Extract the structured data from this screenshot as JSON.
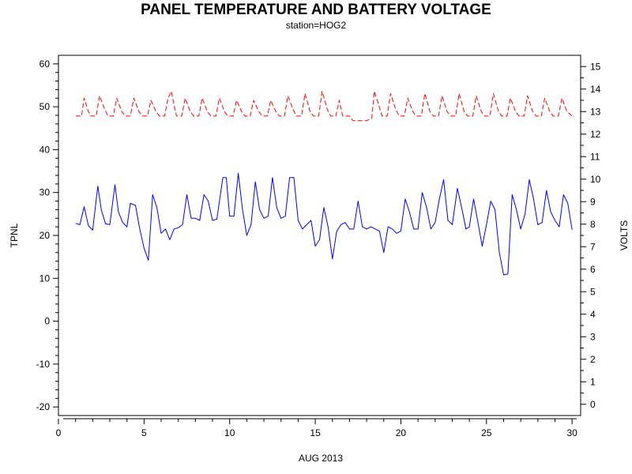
{
  "chart_data": {
    "type": "line",
    "title": "PANEL TEMPERATURE AND BATTERY VOLTAGE",
    "subtitle": "station=HOG2",
    "xlabel": "AUG 2013",
    "ylabel_left": "TPNL",
    "ylabel_right": "VOLTS",
    "xlim": [
      0,
      30.5
    ],
    "ylim_left": [
      -22,
      62
    ],
    "ylim_right": [
      -0.5,
      15.5
    ],
    "x_ticks": [
      0,
      5,
      10,
      15,
      20,
      25,
      30
    ],
    "y_ticks_left": [
      -20,
      -10,
      0,
      10,
      20,
      30,
      40,
      50,
      60
    ],
    "y_ticks_right": [
      0,
      1,
      2,
      3,
      4,
      5,
      6,
      7,
      8,
      9,
      10,
      11,
      12,
      13,
      14,
      15
    ],
    "grid": false,
    "series": [
      {
        "axis": "left",
        "color": "#0000ff",
        "style": "solid",
        "points": [
          [
            1.0,
            22.8
          ],
          [
            1.25,
            22.5
          ],
          [
            1.5,
            26.7
          ],
          [
            1.75,
            22.3
          ],
          [
            2.0,
            21.2
          ],
          [
            2.3,
            31.5
          ],
          [
            2.5,
            26.0
          ],
          [
            2.75,
            22.7
          ],
          [
            3.0,
            22.5
          ],
          [
            3.3,
            31.8
          ],
          [
            3.5,
            25.5
          ],
          [
            3.75,
            23.0
          ],
          [
            4.0,
            22.0
          ],
          [
            4.2,
            27.5
          ],
          [
            4.5,
            27.0
          ],
          [
            4.75,
            21.5
          ],
          [
            5.0,
            17.0
          ],
          [
            5.25,
            14.2
          ],
          [
            5.5,
            29.5
          ],
          [
            5.75,
            26.5
          ],
          [
            6.0,
            20.5
          ],
          [
            6.25,
            21.5
          ],
          [
            6.5,
            19.0
          ],
          [
            6.75,
            21.5
          ],
          [
            7.0,
            21.8
          ],
          [
            7.25,
            22.5
          ],
          [
            7.5,
            29.5
          ],
          [
            7.75,
            24.0
          ],
          [
            8.0,
            24.0
          ],
          [
            8.25,
            23.5
          ],
          [
            8.5,
            29.5
          ],
          [
            8.75,
            28.0
          ],
          [
            9.0,
            23.5
          ],
          [
            9.25,
            23.8
          ],
          [
            9.6,
            33.5
          ],
          [
            9.8,
            33.5
          ],
          [
            10.0,
            24.5
          ],
          [
            10.25,
            24.5
          ],
          [
            10.5,
            34.5
          ],
          [
            10.75,
            26.0
          ],
          [
            11.0,
            20.0
          ],
          [
            11.25,
            22.5
          ],
          [
            11.5,
            32.5
          ],
          [
            11.75,
            26.0
          ],
          [
            12.0,
            24.0
          ],
          [
            12.25,
            24.5
          ],
          [
            12.5,
            33.5
          ],
          [
            12.75,
            26.5
          ],
          [
            13.0,
            24.0
          ],
          [
            13.25,
            24.5
          ],
          [
            13.5,
            33.5
          ],
          [
            13.75,
            33.5
          ],
          [
            14.0,
            23.5
          ],
          [
            14.25,
            21.5
          ],
          [
            14.5,
            22.5
          ],
          [
            14.75,
            23.5
          ],
          [
            15.0,
            17.5
          ],
          [
            15.25,
            19.0
          ],
          [
            15.5,
            26.5
          ],
          [
            15.75,
            22.0
          ],
          [
            16.0,
            14.5
          ],
          [
            16.25,
            21.0
          ],
          [
            16.5,
            22.5
          ],
          [
            16.75,
            23.0
          ],
          [
            17.0,
            21.5
          ],
          [
            17.25,
            21.5
          ],
          [
            17.5,
            28.0
          ],
          [
            17.75,
            22.0
          ],
          [
            18.0,
            21.5
          ],
          [
            18.25,
            22.0
          ],
          [
            18.5,
            21.5
          ],
          [
            18.75,
            21.0
          ],
          [
            19.0,
            16.0
          ],
          [
            19.25,
            22.0
          ],
          [
            19.5,
            21.5
          ],
          [
            19.75,
            20.5
          ],
          [
            20.0,
            21.0
          ],
          [
            20.25,
            28.5
          ],
          [
            20.5,
            25.5
          ],
          [
            20.75,
            21.5
          ],
          [
            21.0,
            21.5
          ],
          [
            21.25,
            30.0
          ],
          [
            21.5,
            26.5
          ],
          [
            21.75,
            21.5
          ],
          [
            22.0,
            23.0
          ],
          [
            22.25,
            28.5
          ],
          [
            22.5,
            33.0
          ],
          [
            22.75,
            23.5
          ],
          [
            23.0,
            22.5
          ],
          [
            23.3,
            31.0
          ],
          [
            23.6,
            25.5
          ],
          [
            23.8,
            21.5
          ],
          [
            24.0,
            22.0
          ],
          [
            24.25,
            28.5
          ],
          [
            24.5,
            23.0
          ],
          [
            24.75,
            17.5
          ],
          [
            25.0,
            22.5
          ],
          [
            25.25,
            28.0
          ],
          [
            25.5,
            26.0
          ],
          [
            25.75,
            16.0
          ],
          [
            26.0,
            10.8
          ],
          [
            26.25,
            11.0
          ],
          [
            26.5,
            29.5
          ],
          [
            26.75,
            26.0
          ],
          [
            27.0,
            21.5
          ],
          [
            27.25,
            25.0
          ],
          [
            27.5,
            33.0
          ],
          [
            27.75,
            28.5
          ],
          [
            28.0,
            22.5
          ],
          [
            28.25,
            23.0
          ],
          [
            28.5,
            30.5
          ],
          [
            28.75,
            25.5
          ],
          [
            29.0,
            23.5
          ],
          [
            29.25,
            22.0
          ],
          [
            29.5,
            29.5
          ],
          [
            29.75,
            27.5
          ],
          [
            30.0,
            21.3
          ]
        ]
      },
      {
        "axis": "right",
        "color": "#ff0000",
        "style": "dashed",
        "points": [
          [
            1.0,
            12.8
          ],
          [
            1.35,
            12.8
          ],
          [
            1.5,
            13.6
          ],
          [
            1.75,
            13.0
          ],
          [
            1.9,
            12.8
          ],
          [
            2.2,
            12.8
          ],
          [
            2.4,
            13.7
          ],
          [
            2.7,
            13.1
          ],
          [
            2.9,
            12.8
          ],
          [
            3.2,
            12.8
          ],
          [
            3.4,
            13.6
          ],
          [
            3.7,
            13.0
          ],
          [
            3.9,
            12.8
          ],
          [
            4.2,
            12.8
          ],
          [
            4.4,
            13.6
          ],
          [
            4.7,
            13.0
          ],
          [
            4.9,
            12.8
          ],
          [
            5.2,
            12.8
          ],
          [
            5.4,
            13.5
          ],
          [
            5.7,
            13.0
          ],
          [
            5.9,
            12.8
          ],
          [
            6.2,
            12.8
          ],
          [
            6.4,
            13.6
          ],
          [
            6.6,
            13.9
          ],
          [
            6.8,
            13.1
          ],
          [
            6.9,
            12.8
          ],
          [
            7.2,
            12.8
          ],
          [
            7.4,
            13.6
          ],
          [
            7.7,
            13.0
          ],
          [
            7.9,
            12.8
          ],
          [
            8.2,
            12.8
          ],
          [
            8.4,
            13.6
          ],
          [
            8.7,
            13.0
          ],
          [
            8.9,
            12.8
          ],
          [
            9.2,
            12.8
          ],
          [
            9.4,
            13.6
          ],
          [
            9.7,
            13.0
          ],
          [
            9.9,
            12.8
          ],
          [
            10.2,
            12.8
          ],
          [
            10.4,
            13.5
          ],
          [
            10.7,
            13.0
          ],
          [
            10.9,
            12.8
          ],
          [
            11.2,
            12.8
          ],
          [
            11.4,
            13.5
          ],
          [
            11.7,
            13.0
          ],
          [
            11.9,
            12.8
          ],
          [
            12.2,
            12.8
          ],
          [
            12.4,
            13.5
          ],
          [
            12.7,
            13.0
          ],
          [
            12.9,
            12.8
          ],
          [
            13.2,
            12.8
          ],
          [
            13.4,
            13.7
          ],
          [
            13.7,
            13.1
          ],
          [
            13.9,
            12.8
          ],
          [
            14.2,
            12.8
          ],
          [
            14.4,
            13.8
          ],
          [
            14.7,
            13.0
          ],
          [
            14.9,
            12.8
          ],
          [
            15.2,
            12.8
          ],
          [
            15.4,
            13.9
          ],
          [
            15.7,
            13.1
          ],
          [
            15.9,
            12.8
          ],
          [
            16.2,
            12.8
          ],
          [
            16.4,
            13.5
          ],
          [
            16.6,
            12.8
          ],
          [
            17.0,
            12.8
          ],
          [
            17.2,
            12.6
          ],
          [
            17.6,
            12.6
          ],
          [
            18.0,
            12.6
          ],
          [
            18.3,
            12.7
          ],
          [
            18.45,
            13.9
          ],
          [
            18.7,
            13.3
          ],
          [
            18.9,
            12.8
          ],
          [
            19.2,
            12.8
          ],
          [
            19.4,
            13.8
          ],
          [
            19.7,
            13.1
          ],
          [
            19.9,
            12.8
          ],
          [
            20.2,
            12.8
          ],
          [
            20.4,
            13.6
          ],
          [
            20.7,
            13.0
          ],
          [
            20.9,
            12.8
          ],
          [
            21.2,
            12.8
          ],
          [
            21.4,
            13.8
          ],
          [
            21.7,
            13.0
          ],
          [
            21.9,
            12.8
          ],
          [
            22.2,
            12.8
          ],
          [
            22.4,
            13.7
          ],
          [
            22.7,
            13.0
          ],
          [
            22.9,
            12.8
          ],
          [
            23.2,
            12.8
          ],
          [
            23.4,
            13.8
          ],
          [
            23.7,
            13.0
          ],
          [
            23.9,
            12.8
          ],
          [
            24.2,
            12.8
          ],
          [
            24.4,
            13.7
          ],
          [
            24.7,
            13.0
          ],
          [
            24.9,
            12.8
          ],
          [
            25.2,
            12.8
          ],
          [
            25.4,
            13.8
          ],
          [
            25.7,
            13.0
          ],
          [
            25.9,
            12.8
          ],
          [
            26.2,
            12.8
          ],
          [
            26.4,
            13.6
          ],
          [
            26.7,
            13.0
          ],
          [
            26.9,
            12.8
          ],
          [
            27.2,
            12.8
          ],
          [
            27.4,
            13.7
          ],
          [
            27.7,
            13.0
          ],
          [
            27.9,
            12.8
          ],
          [
            28.2,
            12.8
          ],
          [
            28.4,
            13.6
          ],
          [
            28.7,
            13.0
          ],
          [
            28.9,
            12.8
          ],
          [
            29.2,
            12.8
          ],
          [
            29.4,
            13.6
          ],
          [
            29.7,
            13.0
          ],
          [
            30.0,
            12.8
          ]
        ]
      }
    ]
  }
}
